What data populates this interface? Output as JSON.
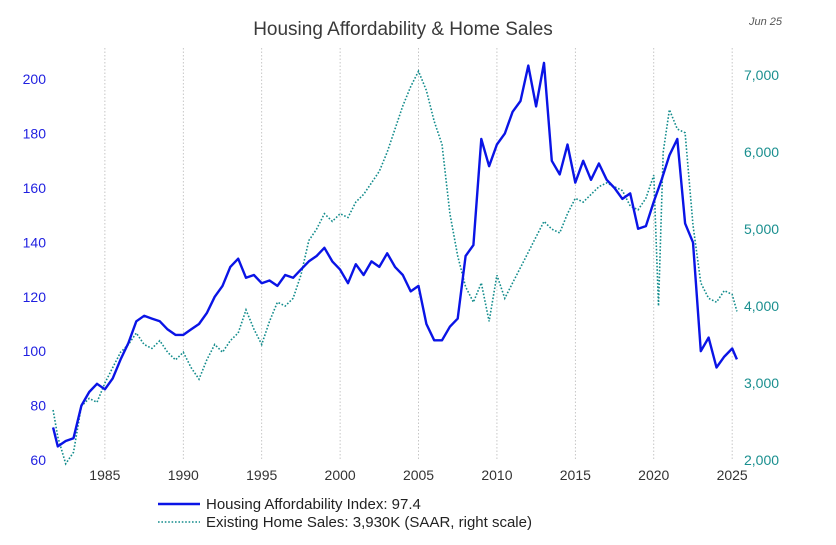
{
  "chart_data": {
    "type": "line",
    "title": "Housing Affordability & Home Sales",
    "date_tag": "Jun 25",
    "x_ticks": [
      "1985",
      "1990",
      "1995",
      "2000",
      "2005",
      "2010",
      "2015",
      "2020",
      "2025"
    ],
    "left_axis": {
      "ticks": [
        "60",
        "80",
        "100",
        "120",
        "140",
        "160",
        "180",
        "200"
      ],
      "ylim": [
        60,
        210
      ]
    },
    "right_axis": {
      "ticks": [
        "2,000",
        "3,000",
        "4,000",
        "5,000",
        "6,000",
        "7,000"
      ],
      "ylim": [
        2000,
        7300
      ]
    },
    "xlim": [
      1981.5,
      2025.5
    ],
    "grid": "vertical dotted at tick years",
    "colors": {
      "affordability": "#0a14e6",
      "sales": "#138c8c"
    },
    "legend": [
      {
        "label": "Housing Affordability Index: 97.4",
        "style": "solid"
      },
      {
        "label": "Existing Home Sales: 3,930K (SAAR, right scale)",
        "style": "dotted"
      }
    ],
    "series": [
      {
        "name": "Housing Affordability Index: 97.4",
        "axis": "left",
        "x": [
          1981.7,
          1982.0,
          1982.5,
          1983.0,
          1983.5,
          1984.0,
          1984.5,
          1985.0,
          1985.5,
          1986.0,
          1986.5,
          1987.0,
          1987.5,
          1988.0,
          1988.5,
          1989.0,
          1989.5,
          1990.0,
          1990.5,
          1991.0,
          1991.5,
          1992.0,
          1992.5,
          1993.0,
          1993.5,
          1994.0,
          1994.5,
          1995.0,
          1995.5,
          1996.0,
          1996.5,
          1997.0,
          1997.5,
          1998.0,
          1998.5,
          1999.0,
          1999.5,
          2000.0,
          2000.5,
          2001.0,
          2001.5,
          2002.0,
          2002.5,
          2003.0,
          2003.5,
          2004.0,
          2004.5,
          2005.0,
          2005.5,
          2006.0,
          2006.5,
          2007.0,
          2007.5,
          2008.0,
          2008.5,
          2009.0,
          2009.5,
          2010.0,
          2010.5,
          2011.0,
          2011.5,
          2012.0,
          2012.5,
          2013.0,
          2013.5,
          2014.0,
          2014.5,
          2015.0,
          2015.5,
          2016.0,
          2016.5,
          2017.0,
          2017.5,
          2018.0,
          2018.5,
          2019.0,
          2019.5,
          2020.0,
          2020.5,
          2021.0,
          2021.5,
          2022.0,
          2022.5,
          2023.0,
          2023.5,
          2024.0,
          2024.5,
          2025.0,
          2025.3
        ],
        "values": [
          72,
          65,
          67,
          68,
          80,
          85,
          88,
          86,
          90,
          97,
          103,
          111,
          113,
          112,
          111,
          108,
          106,
          106,
          108,
          110,
          114,
          120,
          124,
          131,
          134,
          127,
          128,
          125,
          126,
          124,
          128,
          127,
          130,
          133,
          135,
          138,
          133,
          130,
          125,
          132,
          128,
          133,
          131,
          136,
          131,
          128,
          122,
          124,
          110,
          104,
          104,
          109,
          112,
          135,
          139,
          178,
          168,
          176,
          180,
          188,
          192,
          205,
          190,
          206,
          170,
          165,
          176,
          162,
          170,
          163,
          169,
          163,
          160,
          156,
          158,
          145,
          146,
          155,
          163,
          172,
          178,
          147,
          140,
          100,
          105,
          94,
          98,
          101,
          97
        ]
      },
      {
        "name": "Existing Home Sales: 3,930K (SAAR, right scale)",
        "axis": "right",
        "x": [
          1981.7,
          1982.0,
          1982.5,
          1983.0,
          1983.5,
          1984.0,
          1984.5,
          1985.0,
          1985.5,
          1986.0,
          1986.5,
          1987.0,
          1987.5,
          1988.0,
          1988.5,
          1989.0,
          1989.5,
          1990.0,
          1990.5,
          1991.0,
          1991.5,
          1992.0,
          1992.5,
          1993.0,
          1993.5,
          1994.0,
          1994.5,
          1995.0,
          1995.5,
          1996.0,
          1996.5,
          1997.0,
          1997.5,
          1998.0,
          1998.5,
          1999.0,
          1999.5,
          2000.0,
          2000.5,
          2001.0,
          2001.5,
          2002.0,
          2002.5,
          2003.0,
          2003.5,
          2004.0,
          2004.5,
          2005.0,
          2005.5,
          2006.0,
          2006.5,
          2007.0,
          2007.5,
          2008.0,
          2008.5,
          2009.0,
          2009.5,
          2010.0,
          2010.5,
          2011.0,
          2011.5,
          2012.0,
          2012.5,
          2013.0,
          2013.5,
          2014.0,
          2014.5,
          2015.0,
          2015.5,
          2016.0,
          2016.5,
          2017.0,
          2017.5,
          2018.0,
          2018.5,
          2019.0,
          2019.5,
          2020.0,
          2020.3,
          2020.6,
          2021.0,
          2021.5,
          2022.0,
          2022.5,
          2023.0,
          2023.5,
          2024.0,
          2024.5,
          2025.0,
          2025.3
        ],
        "values": [
          2650,
          2300,
          1950,
          2100,
          2700,
          2800,
          2750,
          3000,
          3200,
          3400,
          3500,
          3650,
          3500,
          3450,
          3550,
          3400,
          3300,
          3400,
          3200,
          3050,
          3300,
          3500,
          3400,
          3550,
          3650,
          3950,
          3700,
          3500,
          3800,
          4050,
          4000,
          4100,
          4400,
          4850,
          5000,
          5200,
          5100,
          5200,
          5150,
          5350,
          5450,
          5600,
          5750,
          6000,
          6300,
          6600,
          6850,
          7050,
          6800,
          6400,
          6100,
          5200,
          4650,
          4250,
          4050,
          4300,
          3800,
          4400,
          4100,
          4300,
          4500,
          4700,
          4900,
          5100,
          5000,
          4950,
          5200,
          5400,
          5350,
          5450,
          5550,
          5600,
          5550,
          5500,
          5300,
          5250,
          5400,
          5700,
          4000,
          6000,
          6550,
          6300,
          6250,
          5050,
          4300,
          4100,
          4050,
          4200,
          4150,
          3930
        ]
      }
    ]
  }
}
